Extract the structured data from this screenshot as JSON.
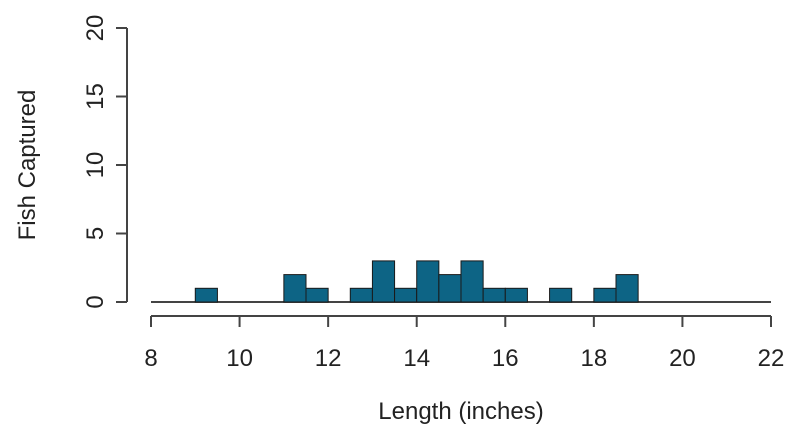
{
  "chart_data": {
    "type": "bar",
    "subtype": "histogram",
    "xlabel": "Length (inches)",
    "ylabel": "Fish Captured",
    "xlim": [
      8,
      22
    ],
    "ylim": [
      0,
      20
    ],
    "x_ticks": [
      8,
      10,
      12,
      14,
      16,
      18,
      20,
      22
    ],
    "y_ticks": [
      0,
      5,
      10,
      15,
      20
    ],
    "bin_width": 0.5,
    "grid": false,
    "bar_color": "#0d6485",
    "bar_edge_color": "#1a1a1a",
    "bins": [
      {
        "start": 9.0,
        "end": 9.5,
        "count": 1
      },
      {
        "start": 11.0,
        "end": 11.5,
        "count": 2
      },
      {
        "start": 11.5,
        "end": 12.0,
        "count": 1
      },
      {
        "start": 12.5,
        "end": 13.0,
        "count": 1
      },
      {
        "start": 13.0,
        "end": 13.5,
        "count": 3
      },
      {
        "start": 13.5,
        "end": 14.0,
        "count": 1
      },
      {
        "start": 14.0,
        "end": 14.5,
        "count": 3
      },
      {
        "start": 14.5,
        "end": 15.0,
        "count": 2
      },
      {
        "start": 15.0,
        "end": 15.5,
        "count": 3
      },
      {
        "start": 15.5,
        "end": 16.0,
        "count": 1
      },
      {
        "start": 16.0,
        "end": 16.5,
        "count": 1
      },
      {
        "start": 17.0,
        "end": 17.5,
        "count": 1
      },
      {
        "start": 18.0,
        "end": 18.5,
        "count": 1
      },
      {
        "start": 18.5,
        "end": 19.0,
        "count": 2
      }
    ]
  }
}
